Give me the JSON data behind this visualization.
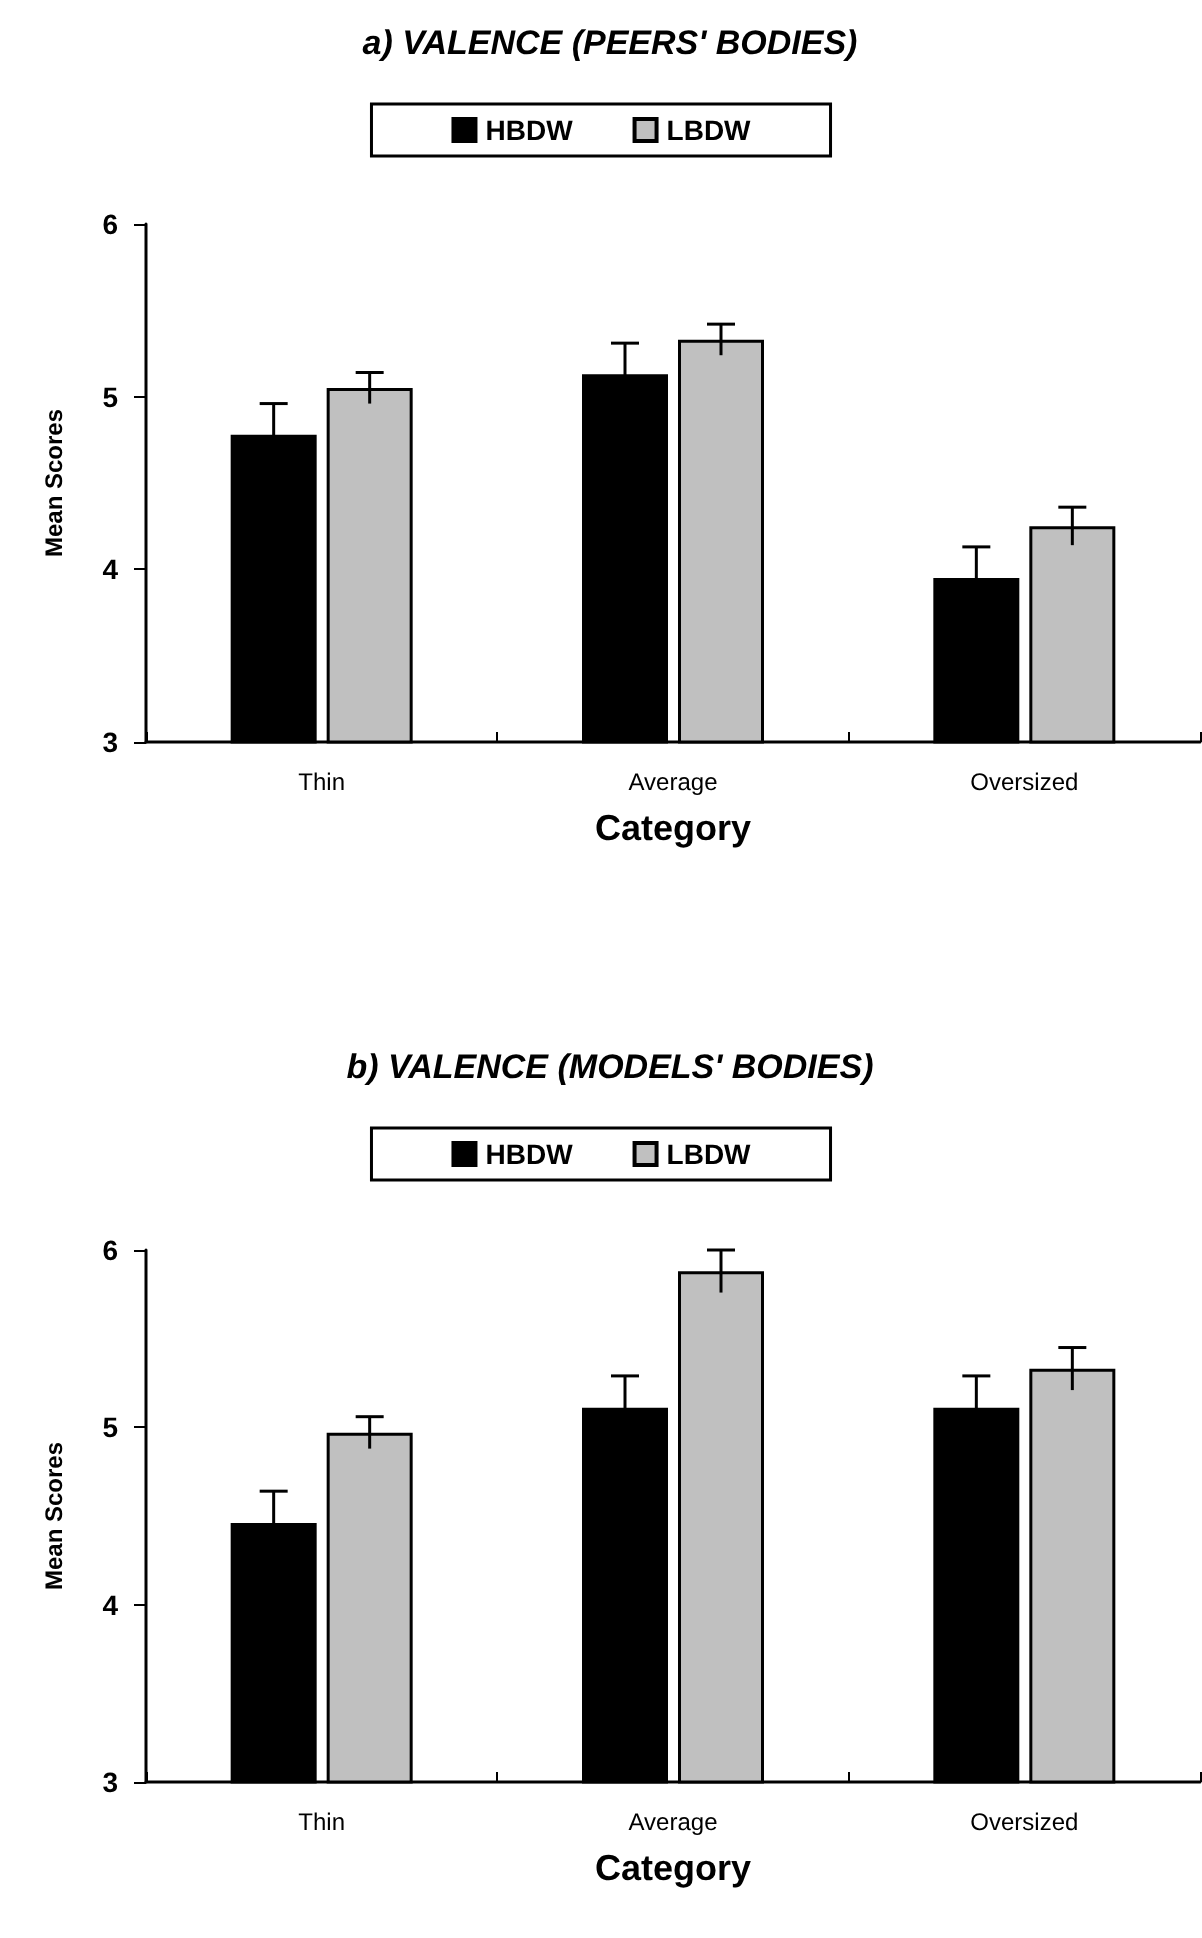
{
  "chart_data": [
    {
      "type": "bar",
      "title": "a) VALENCE (PEERS' BODIES)",
      "xlabel": "Category",
      "ylabel": "Mean Scores",
      "categories": [
        "Thin",
        "Average",
        "Oversized"
      ],
      "series": [
        {
          "name": "HBDW",
          "color": "#000000",
          "values": [
            4.78,
            5.13,
            3.95
          ],
          "errors": [
            0.18,
            0.18,
            0.18
          ]
        },
        {
          "name": "LBDW",
          "color": "#c0c0c0",
          "values": [
            5.05,
            5.33,
            4.25
          ],
          "errors": [
            0.09,
            0.09,
            0.11
          ]
        }
      ],
      "ylim": [
        3,
        6
      ],
      "yticks": [
        3,
        4,
        5,
        6
      ],
      "grid": false,
      "legend": "top"
    },
    {
      "type": "bar",
      "title": "b) VALENCE (MODELS' BODIES)",
      "xlabel": "Category",
      "ylabel": "Mean Scores",
      "categories": [
        "Thin",
        "Average",
        "Oversized"
      ],
      "series": [
        {
          "name": "HBDW",
          "color": "#000000",
          "values": [
            4.46,
            5.11,
            5.11
          ],
          "errors": [
            0.18,
            0.18,
            0.18
          ]
        },
        {
          "name": "LBDW",
          "color": "#c0c0c0",
          "values": [
            4.97,
            5.88,
            5.33
          ],
          "errors": [
            0.09,
            0.12,
            0.12
          ]
        }
      ],
      "ylim": [
        3,
        6
      ],
      "yticks": [
        3,
        4,
        5,
        6
      ],
      "grid": false,
      "legend": "top"
    }
  ]
}
